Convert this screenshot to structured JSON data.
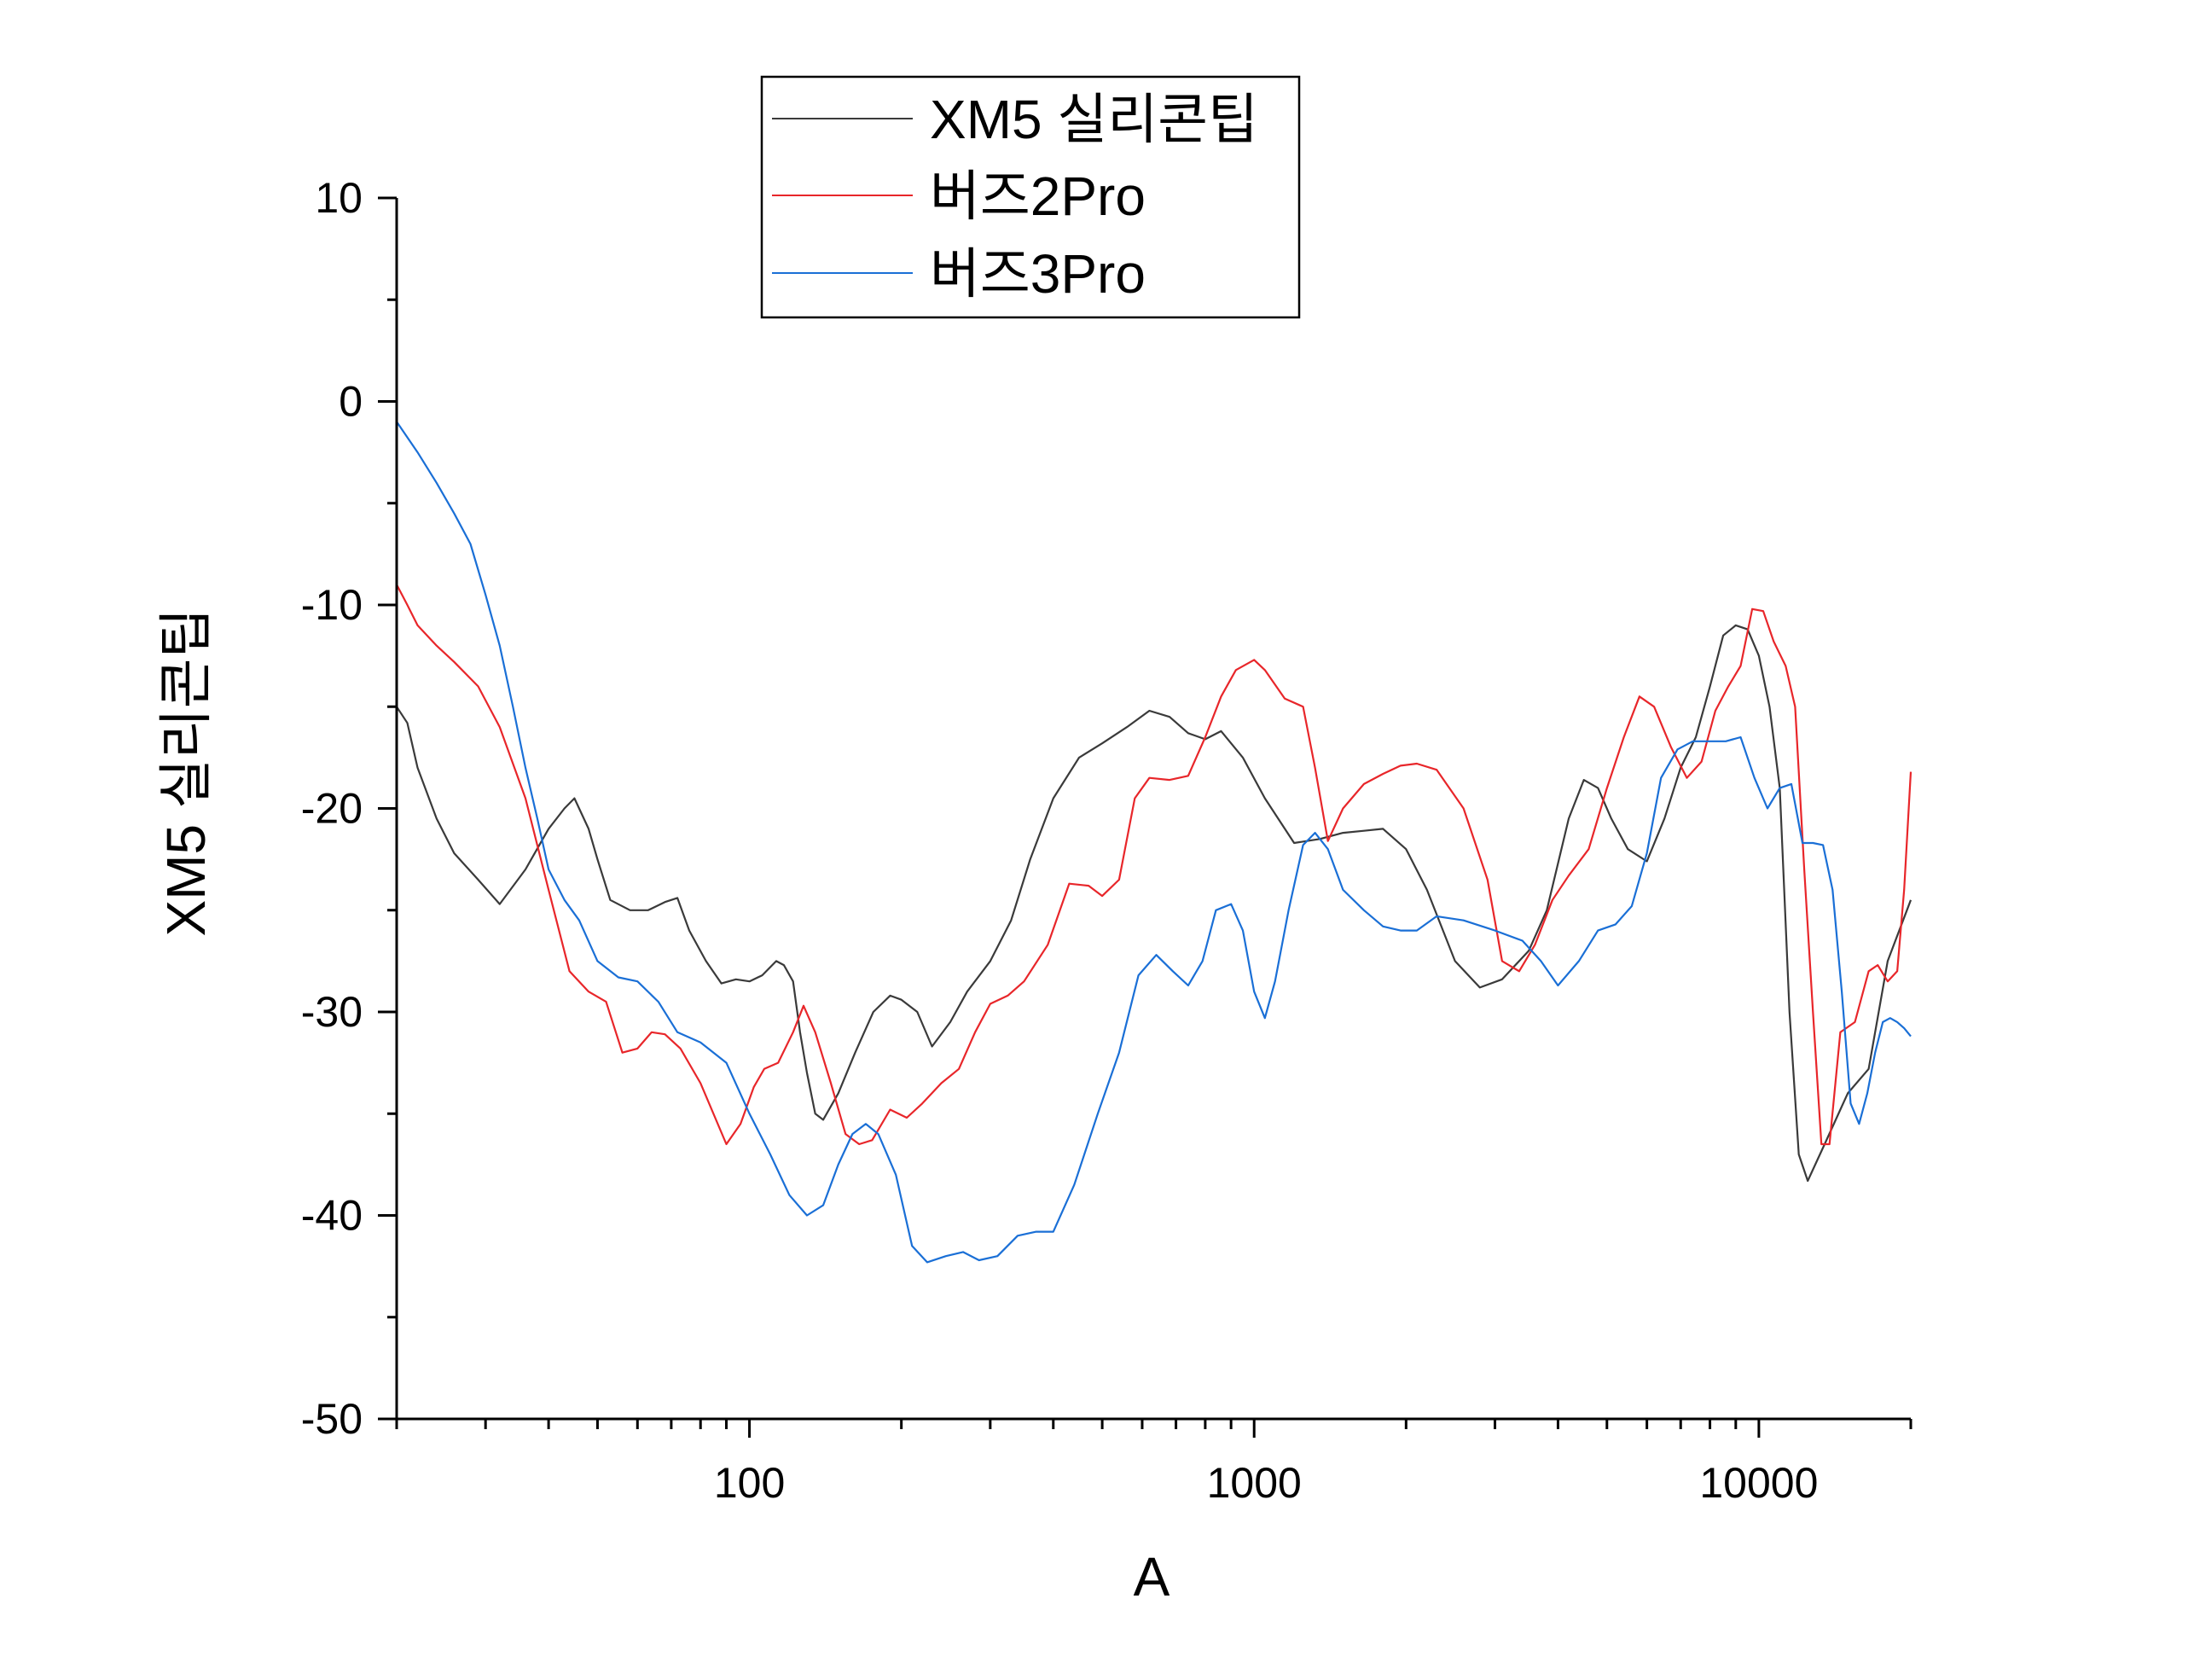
{
  "chart_data": {
    "type": "line",
    "xlabel": "A",
    "ylabel": "XM5 실리콘팁",
    "x_scale": "log",
    "xlim": [
      20,
      20000
    ],
    "ylim": [
      -50,
      10
    ],
    "x_tick_labels": [
      "100",
      "1000",
      "10000"
    ],
    "y_tick_labels": [
      "10",
      "0",
      "-10",
      "-20",
      "-30",
      "-40",
      "-50"
    ],
    "legend_position": "top-center",
    "grid": false,
    "series": [
      {
        "name": "XM5 실리콘팁",
        "color": "#3a3a3a",
        "points": [
          [
            20,
            -15
          ],
          [
            21,
            -15.8
          ],
          [
            22,
            -18
          ],
          [
            24,
            -20.5
          ],
          [
            26,
            -22.2
          ],
          [
            29,
            -23.5
          ],
          [
            32,
            -24.7
          ],
          [
            36,
            -23
          ],
          [
            40,
            -21
          ],
          [
            43,
            -20
          ],
          [
            45,
            -19.5
          ],
          [
            48,
            -21
          ],
          [
            50,
            -22.5
          ],
          [
            53,
            -24.5
          ],
          [
            58,
            -25
          ],
          [
            63,
            -25
          ],
          [
            68,
            -24.6
          ],
          [
            72,
            -24.4
          ],
          [
            76,
            -26
          ],
          [
            82,
            -27.5
          ],
          [
            88,
            -28.6
          ],
          [
            94,
            -28.4
          ],
          [
            100,
            -28.5
          ],
          [
            106,
            -28.2
          ],
          [
            113,
            -27.5
          ],
          [
            117,
            -27.7
          ],
          [
            122,
            -28.5
          ],
          [
            126,
            -31
          ],
          [
            130,
            -33
          ],
          [
            135,
            -35
          ],
          [
            140,
            -35.3
          ],
          [
            150,
            -34
          ],
          [
            162,
            -32
          ],
          [
            176,
            -30
          ],
          [
            190,
            -29.2
          ],
          [
            200,
            -29.4
          ],
          [
            215,
            -30
          ],
          [
            230,
            -31.7
          ],
          [
            250,
            -30.5
          ],
          [
            270,
            -29
          ],
          [
            300,
            -27.5
          ],
          [
            330,
            -25.5
          ],
          [
            360,
            -22.5
          ],
          [
            400,
            -19.5
          ],
          [
            450,
            -17.5
          ],
          [
            500,
            -16.8
          ],
          [
            560,
            -16
          ],
          [
            620,
            -15.2
          ],
          [
            680,
            -15.5
          ],
          [
            740,
            -16.3
          ],
          [
            800,
            -16.6
          ],
          [
            860,
            -16.2
          ],
          [
            950,
            -17.5
          ],
          [
            1050,
            -19.5
          ],
          [
            1200,
            -21.7
          ],
          [
            1350,
            -21.5
          ],
          [
            1500,
            -21.2
          ],
          [
            1650,
            -21.1
          ],
          [
            1800,
            -21
          ],
          [
            2000,
            -22
          ],
          [
            2200,
            -24
          ],
          [
            2500,
            -27.5
          ],
          [
            2800,
            -28.8
          ],
          [
            3100,
            -28.4
          ],
          [
            3500,
            -27
          ],
          [
            3800,
            -25
          ],
          [
            4200,
            -20.5
          ],
          [
            4500,
            -18.6
          ],
          [
            4800,
            -19
          ],
          [
            5100,
            -20.5
          ],
          [
            5500,
            -22
          ],
          [
            6000,
            -22.6
          ],
          [
            6500,
            -20.5
          ],
          [
            7000,
            -18
          ],
          [
            7500,
            -16.5
          ],
          [
            8000,
            -14
          ],
          [
            8500,
            -11.5
          ],
          [
            9000,
            -11
          ],
          [
            9500,
            -11.2
          ],
          [
            10000,
            -12.5
          ],
          [
            10500,
            -15
          ],
          [
            11000,
            -19
          ],
          [
            11500,
            -30
          ],
          [
            12000,
            -37
          ],
          [
            12500,
            -38.3
          ],
          [
            13500,
            -36.5
          ],
          [
            15000,
            -34
          ],
          [
            16500,
            -32.8
          ],
          [
            18000,
            -27.5
          ],
          [
            20000,
            -24.5
          ]
        ]
      },
      {
        "name": "버즈2Pro",
        "color": "#e8262a",
        "points": [
          [
            20,
            -9
          ],
          [
            21,
            -10
          ],
          [
            22,
            -11
          ],
          [
            24,
            -12
          ],
          [
            26,
            -12.8
          ],
          [
            29,
            -14
          ],
          [
            32,
            -16
          ],
          [
            36,
            -19.5
          ],
          [
            40,
            -24
          ],
          [
            44,
            -28
          ],
          [
            48,
            -29
          ],
          [
            52,
            -29.5
          ],
          [
            56,
            -32
          ],
          [
            60,
            -31.8
          ],
          [
            64,
            -31
          ],
          [
            68,
            -31.1
          ],
          [
            73,
            -31.8
          ],
          [
            80,
            -33.5
          ],
          [
            90,
            -36.5
          ],
          [
            96,
            -35.5
          ],
          [
            102,
            -33.7
          ],
          [
            107,
            -32.8
          ],
          [
            114,
            -32.5
          ],
          [
            122,
            -31
          ],
          [
            128,
            -29.7
          ],
          [
            135,
            -31
          ],
          [
            145,
            -33.5
          ],
          [
            155,
            -36
          ],
          [
            165,
            -36.5
          ],
          [
            175,
            -36.3
          ],
          [
            190,
            -34.8
          ],
          [
            205,
            -35.2
          ],
          [
            220,
            -34.5
          ],
          [
            240,
            -33.5
          ],
          [
            260,
            -32.8
          ],
          [
            280,
            -31
          ],
          [
            300,
            -29.6
          ],
          [
            325,
            -29.2
          ],
          [
            350,
            -28.5
          ],
          [
            390,
            -26.7
          ],
          [
            430,
            -23.7
          ],
          [
            470,
            -23.8
          ],
          [
            500,
            -24.3
          ],
          [
            540,
            -23.5
          ],
          [
            580,
            -19.5
          ],
          [
            620,
            -18.5
          ],
          [
            680,
            -18.6
          ],
          [
            740,
            -18.4
          ],
          [
            800,
            -16.5
          ],
          [
            860,
            -14.5
          ],
          [
            920,
            -13.2
          ],
          [
            1000,
            -12.7
          ],
          [
            1050,
            -13.2
          ],
          [
            1150,
            -14.6
          ],
          [
            1250,
            -15
          ],
          [
            1320,
            -18
          ],
          [
            1400,
            -21.6
          ],
          [
            1500,
            -20
          ],
          [
            1650,
            -18.8
          ],
          [
            1800,
            -18.3
          ],
          [
            1950,
            -17.9
          ],
          [
            2100,
            -17.8
          ],
          [
            2300,
            -18.1
          ],
          [
            2600,
            -20
          ],
          [
            2900,
            -23.5
          ],
          [
            3100,
            -27.5
          ],
          [
            3350,
            -28
          ],
          [
            3600,
            -26.7
          ],
          [
            3900,
            -24.5
          ],
          [
            4200,
            -23.3
          ],
          [
            4600,
            -22
          ],
          [
            5000,
            -19
          ],
          [
            5400,
            -16.5
          ],
          [
            5800,
            -14.5
          ],
          [
            6200,
            -15
          ],
          [
            6700,
            -17
          ],
          [
            7200,
            -18.5
          ],
          [
            7700,
            -17.7
          ],
          [
            8200,
            -15.2
          ],
          [
            8700,
            -14
          ],
          [
            9200,
            -13
          ],
          [
            9700,
            -10.2
          ],
          [
            10200,
            -10.3
          ],
          [
            10700,
            -11.8
          ],
          [
            11300,
            -13
          ],
          [
            11800,
            -15
          ],
          [
            12300,
            -23
          ],
          [
            12800,
            -30
          ],
          [
            13300,
            -36.5
          ],
          [
            13800,
            -36.5
          ],
          [
            14500,
            -31
          ],
          [
            15500,
            -30.5
          ],
          [
            16500,
            -28
          ],
          [
            17200,
            -27.7
          ],
          [
            18000,
            -28.5
          ],
          [
            18800,
            -28
          ],
          [
            19400,
            -24
          ],
          [
            20000,
            -18.2
          ]
        ]
      },
      {
        "name": "버즈3Pro",
        "color": "#1a6fd6",
        "points": [
          [
            20,
            -1
          ],
          [
            22,
            -2.5
          ],
          [
            24,
            -4
          ],
          [
            26,
            -5.5
          ],
          [
            28,
            -7
          ],
          [
            30,
            -9.5
          ],
          [
            32,
            -12
          ],
          [
            34,
            -15
          ],
          [
            36,
            -18
          ],
          [
            38,
            -20.5
          ],
          [
            40,
            -23
          ],
          [
            43,
            -24.5
          ],
          [
            46,
            -25.5
          ],
          [
            50,
            -27.5
          ],
          [
            55,
            -28.3
          ],
          [
            60,
            -28.5
          ],
          [
            66,
            -29.5
          ],
          [
            72,
            -31
          ],
          [
            80,
            -31.5
          ],
          [
            90,
            -32.5
          ],
          [
            100,
            -35
          ],
          [
            110,
            -37
          ],
          [
            120,
            -39
          ],
          [
            130,
            -40
          ],
          [
            140,
            -39.5
          ],
          [
            150,
            -37.5
          ],
          [
            160,
            -36
          ],
          [
            170,
            -35.5
          ],
          [
            180,
            -36
          ],
          [
            195,
            -38
          ],
          [
            210,
            -41.5
          ],
          [
            225,
            -42.3
          ],
          [
            245,
            -42
          ],
          [
            265,
            -41.8
          ],
          [
            285,
            -42.2
          ],
          [
            310,
            -42
          ],
          [
            340,
            -41
          ],
          [
            370,
            -40.8
          ],
          [
            400,
            -40.8
          ],
          [
            440,
            -38.5
          ],
          [
            490,
            -35
          ],
          [
            540,
            -32
          ],
          [
            590,
            -28.2
          ],
          [
            640,
            -27.2
          ],
          [
            690,
            -28
          ],
          [
            740,
            -28.7
          ],
          [
            790,
            -27.5
          ],
          [
            840,
            -25
          ],
          [
            900,
            -24.7
          ],
          [
            950,
            -26
          ],
          [
            1000,
            -29
          ],
          [
            1050,
            -30.3
          ],
          [
            1100,
            -28.5
          ],
          [
            1170,
            -25
          ],
          [
            1250,
            -21.8
          ],
          [
            1320,
            -21.2
          ],
          [
            1400,
            -22
          ],
          [
            1500,
            -24
          ],
          [
            1650,
            -25
          ],
          [
            1800,
            -25.8
          ],
          [
            1950,
            -26
          ],
          [
            2100,
            -26
          ],
          [
            2300,
            -25.3
          ],
          [
            2600,
            -25.5
          ],
          [
            3000,
            -26
          ],
          [
            3400,
            -26.5
          ],
          [
            3700,
            -27.5
          ],
          [
            4000,
            -28.7
          ],
          [
            4400,
            -27.5
          ],
          [
            4800,
            -26
          ],
          [
            5200,
            -25.7
          ],
          [
            5600,
            -24.8
          ],
          [
            6000,
            -22.2
          ],
          [
            6400,
            -18.5
          ],
          [
            6900,
            -17.1
          ],
          [
            7400,
            -16.7
          ],
          [
            8000,
            -16.7
          ],
          [
            8600,
            -16.7
          ],
          [
            9200,
            -16.5
          ],
          [
            9800,
            -18.5
          ],
          [
            10400,
            -20
          ],
          [
            11000,
            -19
          ],
          [
            11600,
            -18.8
          ],
          [
            12200,
            -21.7
          ],
          [
            12800,
            -21.7
          ],
          [
            13400,
            -21.8
          ],
          [
            14000,
            -24
          ],
          [
            14600,
            -29
          ],
          [
            15200,
            -34.5
          ],
          [
            15800,
            -35.5
          ],
          [
            16400,
            -34
          ],
          [
            17000,
            -32
          ],
          [
            17600,
            -30.5
          ],
          [
            18200,
            -30.3
          ],
          [
            18800,
            -30.5
          ],
          [
            19400,
            -30.8
          ],
          [
            20000,
            -31.2
          ]
        ]
      }
    ]
  }
}
